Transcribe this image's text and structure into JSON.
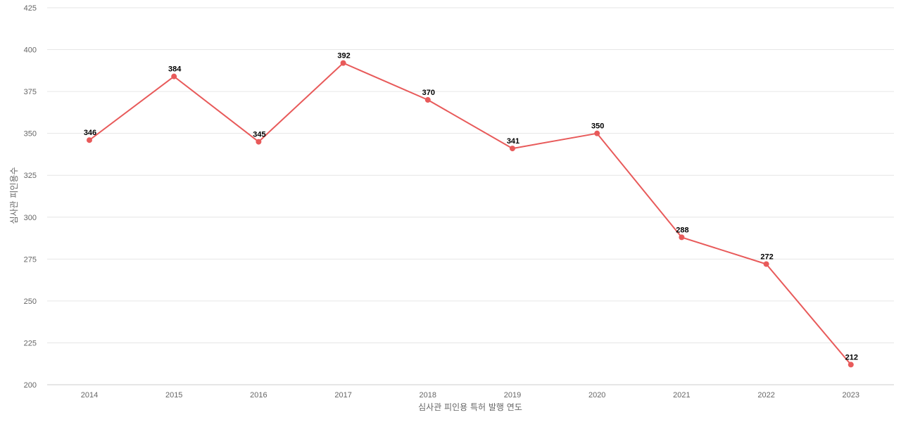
{
  "chart_data": {
    "type": "line",
    "categories": [
      "2014",
      "2015",
      "2016",
      "2017",
      "2018",
      "2019",
      "2020",
      "2021",
      "2022",
      "2023"
    ],
    "series": [
      {
        "values": [
          346,
          384,
          345,
          392,
          370,
          341,
          350,
          288,
          272,
          212
        ]
      }
    ],
    "xlabel": "심사관 피인용 특허 발행 연도",
    "ylabel": "심사관 피인용수",
    "ylim": [
      200,
      425
    ],
    "yticks": [
      200,
      225,
      250,
      275,
      300,
      325,
      350,
      375,
      400,
      425
    ],
    "grid": true,
    "data_labels": true,
    "colors": {
      "line": "#e85a5a",
      "grid": "#e6e6e6",
      "tick": "#666666"
    }
  }
}
